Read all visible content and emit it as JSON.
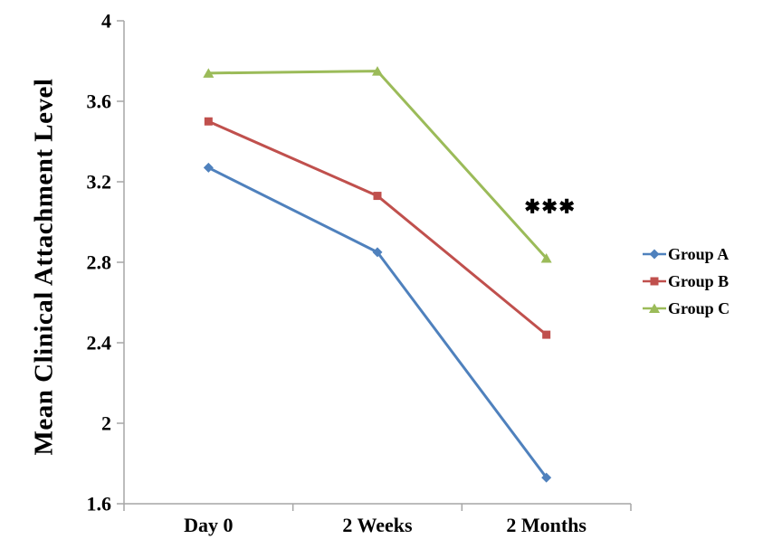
{
  "chart_data": {
    "type": "line",
    "title": "",
    "xlabel": "",
    "ylabel": "Mean Clinical Attachment Level",
    "categories": [
      "Day 0",
      "2 Weeks",
      "2 Months"
    ],
    "series": [
      {
        "name": "Group A",
        "values": [
          3.27,
          2.85,
          1.73
        ],
        "color": "#4F81BD",
        "marker": "diamond"
      },
      {
        "name": "Group B",
        "values": [
          3.5,
          3.13,
          2.44
        ],
        "color": "#C0504D",
        "marker": "square"
      },
      {
        "name": "Group C",
        "values": [
          3.74,
          3.75,
          2.82
        ],
        "color": "#9BBB59",
        "marker": "triangle"
      }
    ],
    "ylim": [
      1.6,
      4.0
    ],
    "ytick_step": 0.4,
    "ytick_labels": [
      "1.6",
      "2",
      "2.4",
      "2.8",
      "3.2",
      "3.6",
      "4"
    ],
    "grid": false,
    "legend_position": "right",
    "axis_color": "#A6A6A6",
    "annotation": {
      "x_category_index": 2,
      "y_value": 3.08,
      "symbols": [
        {
          "glyph": "✱",
          "color": "#1F6E8F"
        },
        {
          "glyph": "✱",
          "color": "#9C2A28"
        },
        {
          "glyph": "✱",
          "color": "#8FAC4B"
        }
      ]
    }
  }
}
